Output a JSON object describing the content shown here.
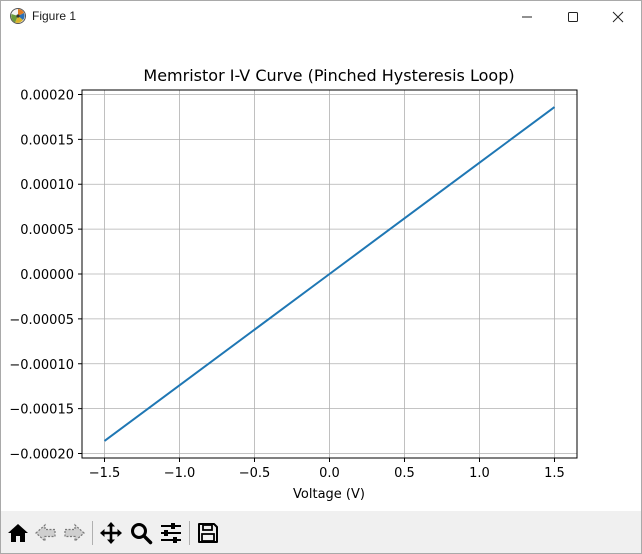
{
  "window": {
    "title": "Figure 1"
  },
  "chart_data": {
    "type": "line",
    "title": "Memristor I-V Curve (Pinched Hysteresis Loop)",
    "xlabel": "Voltage (V)",
    "ylabel": "",
    "xlim": [
      -1.65,
      1.65
    ],
    "ylim": [
      -0.000205,
      0.000205
    ],
    "grid": true,
    "x_ticks": [
      -1.5,
      -1.0,
      -0.5,
      0.0,
      0.5,
      1.0,
      1.5
    ],
    "x_tick_labels": [
      "−1.5",
      "−1.0",
      "−0.5",
      "0.0",
      "0.5",
      "1.0",
      "1.5"
    ],
    "y_ticks": [
      -0.0002,
      -0.00015,
      -0.0001,
      -5e-05,
      0,
      5e-05,
      0.0001,
      0.00015,
      0.0002
    ],
    "y_tick_labels": [
      "−0.00020",
      "−0.00015",
      "−0.00010",
      "−0.00005",
      "0.00000",
      "0.00005",
      "0.00010",
      "0.00015",
      "0.00020"
    ],
    "series": [
      {
        "color": "#1f77b4",
        "x": [
          -1.5,
          -1.0,
          -0.5,
          0.0,
          0.5,
          1.0,
          1.5
        ],
        "y": [
          -0.000186,
          -0.000124,
          -6.2e-05,
          0.0,
          6.2e-05,
          0.000124,
          0.000186
        ]
      }
    ]
  },
  "toolbar": {
    "buttons": [
      {
        "name": "home-icon"
      },
      {
        "name": "back-icon"
      },
      {
        "name": "forward-icon"
      },
      {
        "name": "pan-icon"
      },
      {
        "name": "zoom-icon"
      },
      {
        "name": "configure-subplots-icon"
      },
      {
        "name": "save-icon"
      }
    ]
  }
}
